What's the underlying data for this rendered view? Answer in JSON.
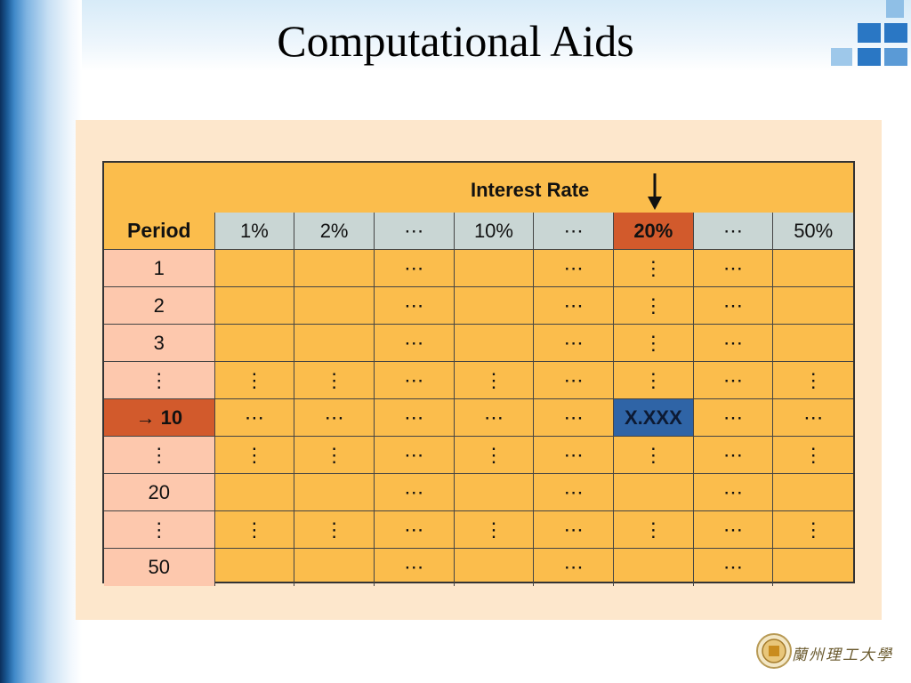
{
  "slide": {
    "title": "Computational Aids"
  },
  "table": {
    "header_title": "Interest Rate",
    "period_label": "Period",
    "rate_columns": [
      "1%",
      "2%",
      "⋯",
      "10%",
      "⋯",
      "20%",
      "⋯",
      "50%"
    ],
    "highlighted_column": "20%",
    "rows": [
      {
        "period": "1",
        "cells": [
          "",
          "",
          "⋯",
          "",
          "⋯",
          "⋮",
          "⋯",
          ""
        ]
      },
      {
        "period": "2",
        "cells": [
          "",
          "",
          "⋯",
          "",
          "⋯",
          "⋮",
          "⋯",
          ""
        ]
      },
      {
        "period": "3",
        "cells": [
          "",
          "",
          "⋯",
          "",
          "⋯",
          "⋮",
          "⋯",
          ""
        ]
      },
      {
        "period": "⋮",
        "cells": [
          "⋮",
          "⋮",
          "⋯",
          "⋮",
          "⋯",
          "⋮",
          "⋯",
          "⋮"
        ]
      },
      {
        "period": "→ 10",
        "cells": [
          "⋯",
          "⋯",
          "⋯",
          "⋯",
          "⋯",
          "X.XXX",
          "⋯",
          "⋯"
        ],
        "highlight": true
      },
      {
        "period": "⋮",
        "cells": [
          "⋮",
          "⋮",
          "⋯",
          "⋮",
          "⋯",
          "⋮",
          "⋯",
          "⋮"
        ]
      },
      {
        "period": "20",
        "cells": [
          "",
          "",
          "⋯",
          "",
          "⋯",
          "",
          "⋯",
          ""
        ]
      },
      {
        "period": "⋮",
        "cells": [
          "⋮",
          "⋮",
          "⋯",
          "⋮",
          "⋯",
          "⋮",
          "⋯",
          "⋮"
        ]
      },
      {
        "period": "50",
        "cells": [
          "",
          "",
          "⋯",
          "",
          "⋯",
          "",
          "⋯",
          ""
        ]
      }
    ]
  },
  "colors": {
    "table_body": "#fbbd4c",
    "period_column": "#fdc8ad",
    "header_cells": "#c9d6d4",
    "highlight_red": "#d25a2c",
    "highlight_blue": "#2f64a6",
    "panel_background": "#fde7cc"
  },
  "logo": {
    "university_text": "蘭州理工大學"
  }
}
